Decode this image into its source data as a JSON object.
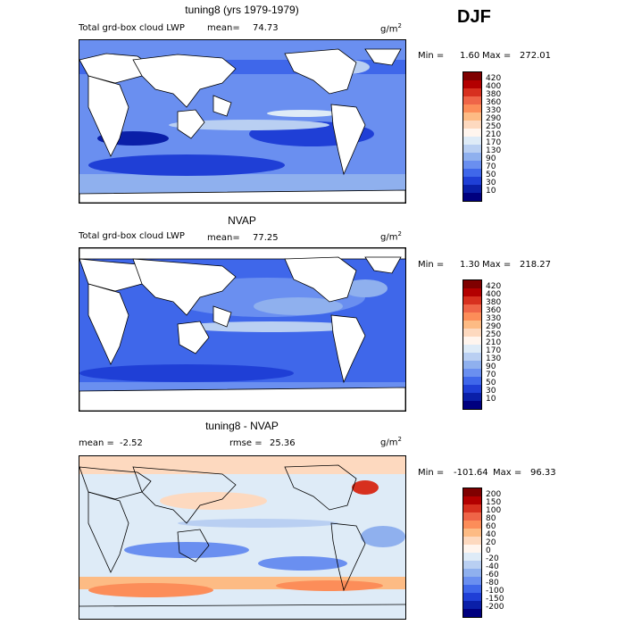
{
  "season": "DJF",
  "chart_data": [
    {
      "type": "heatmap",
      "title": "tuning8 (yrs 1979-1979)",
      "variable": "Total grd-box cloud LWP",
      "mean_label": "mean=",
      "mean": "74.73",
      "units": "g/m",
      "units_exp": "2",
      "min_label": "Min =",
      "min": "1.60",
      "max_label": "Max =",
      "max": "272.01",
      "levels": [
        "420",
        "400",
        "380",
        "360",
        "330",
        "290",
        "250",
        "210",
        "170",
        "130",
        "90",
        "70",
        "50",
        "30",
        "10"
      ],
      "colors": [
        "#7f0000",
        "#b30000",
        "#d7301f",
        "#ef6548",
        "#fc8d59",
        "#fdbb84",
        "#fdd9bf",
        "#fff5ee",
        "#deebf7",
        "#b9cff2",
        "#8fb0ee",
        "#6a8ff0",
        "#3f67ea",
        "#1f3fd6",
        "#0a1fa8",
        "#00007f"
      ]
    },
    {
      "type": "heatmap",
      "title": "NVAP",
      "variable": "Total grd-box cloud LWP",
      "mean_label": "mean=",
      "mean": "77.25",
      "units": "g/m",
      "units_exp": "2",
      "min_label": "Min =",
      "min": "1.30",
      "max_label": "Max =",
      "max": "218.27",
      "levels": [
        "420",
        "400",
        "380",
        "360",
        "330",
        "290",
        "250",
        "210",
        "170",
        "130",
        "90",
        "70",
        "50",
        "30",
        "10"
      ],
      "colors": [
        "#7f0000",
        "#b30000",
        "#d7301f",
        "#ef6548",
        "#fc8d59",
        "#fdbb84",
        "#fdd9bf",
        "#fff5ee",
        "#deebf7",
        "#b9cff2",
        "#8fb0ee",
        "#6a8ff0",
        "#3f67ea",
        "#1f3fd6",
        "#0a1fa8",
        "#00007f"
      ]
    },
    {
      "type": "heatmap",
      "title": "tuning8 - NVAP",
      "mean_label": "mean =",
      "mean": "-2.52",
      "rmse_label": "rmse =",
      "rmse": "25.36",
      "units": "g/m",
      "units_exp": "2",
      "min_label": "Min =",
      "min": "-101.64",
      "max_label": "Max =",
      "max": "96.33",
      "levels": [
        "200",
        "150",
        "100",
        "80",
        "60",
        "40",
        "20",
        "0",
        "-20",
        "-40",
        "-60",
        "-80",
        "-100",
        "-150",
        "-200"
      ],
      "colors": [
        "#7f0000",
        "#b30000",
        "#d7301f",
        "#ef6548",
        "#fc8d59",
        "#fdbb84",
        "#fdd9bf",
        "#fff5ee",
        "#deebf7",
        "#b9cff2",
        "#8fb0ee",
        "#6a8ff0",
        "#3f67ea",
        "#1f3fd6",
        "#0a1fa8",
        "#00007f"
      ]
    }
  ]
}
